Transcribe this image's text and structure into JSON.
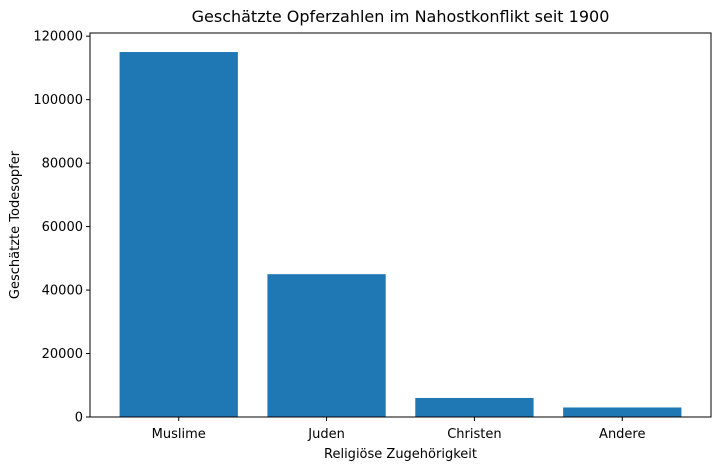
{
  "chart_data": {
    "type": "bar",
    "title": "Geschätzte Opferzahlen im Nahostkonflikt seit 1900",
    "xlabel": "Religiöse Zugehörigkeit",
    "ylabel": "Geschätzte Todesopfer",
    "categories": [
      "Muslime",
      "Juden",
      "Christen",
      "Andere"
    ],
    "values": [
      115000,
      45000,
      6000,
      3000
    ],
    "ylim": [
      0,
      121000
    ],
    "yticks": [
      0,
      20000,
      40000,
      60000,
      80000,
      100000,
      120000
    ],
    "grid": false,
    "bar_color": "#1f77b4"
  }
}
